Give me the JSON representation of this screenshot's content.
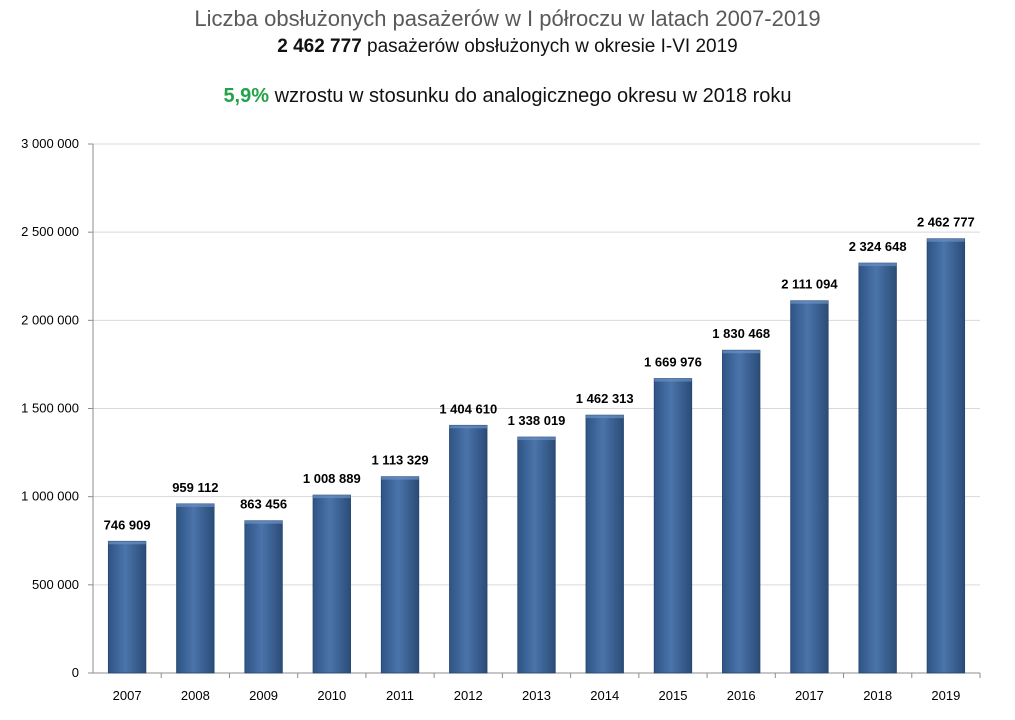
{
  "header": {
    "title": "Liczba obsłużonych pasażerów w  I półroczu w latach 2007-2019",
    "subtitle_value": "2 462 777",
    "subtitle_text": "pasażerów obsłużonych w okresie I-VI 2019",
    "growth_value": "5,9%",
    "growth_text": "wzrostu w stosunku do analogicznego okresu w 2018 roku"
  },
  "colors": {
    "bar": "#3d6599",
    "bar_dark": "#2b4c78",
    "bar_light": "#5a83b8",
    "growth": "#22a34a",
    "grid": "#d9d9d9"
  },
  "chart_data": {
    "type": "bar",
    "title": "Liczba obsłużonych pasażerów w  I półroczu w latach 2007-2019",
    "xlabel": "",
    "ylabel": "",
    "ylim": [
      0,
      3000000
    ],
    "yticks": [
      0,
      500000,
      1000000,
      1500000,
      2000000,
      2500000,
      3000000
    ],
    "ytick_labels": [
      "0",
      "500 000",
      "1 000 000",
      "1 500 000",
      "2 000 000",
      "2 500 000",
      "3 000 000"
    ],
    "grid": true,
    "categories": [
      "2007",
      "2008",
      "2009",
      "2010",
      "2011",
      "2012",
      "2013",
      "2014",
      "2015",
      "2016",
      "2017",
      "2018",
      "2019"
    ],
    "values": [
      746909,
      959112,
      863456,
      1008889,
      1113329,
      1404610,
      1338019,
      1462313,
      1669976,
      1830468,
      2111094,
      2324648,
      2462777
    ],
    "value_labels": [
      "746 909",
      "959 112",
      "863 456",
      "1 008 889",
      "1 113 329",
      "1 404 610",
      "1 338 019",
      "1 462 313",
      "1 669 976",
      "1 830 468",
      "2 111 094",
      "2 324 648",
      "2 462 777"
    ]
  }
}
